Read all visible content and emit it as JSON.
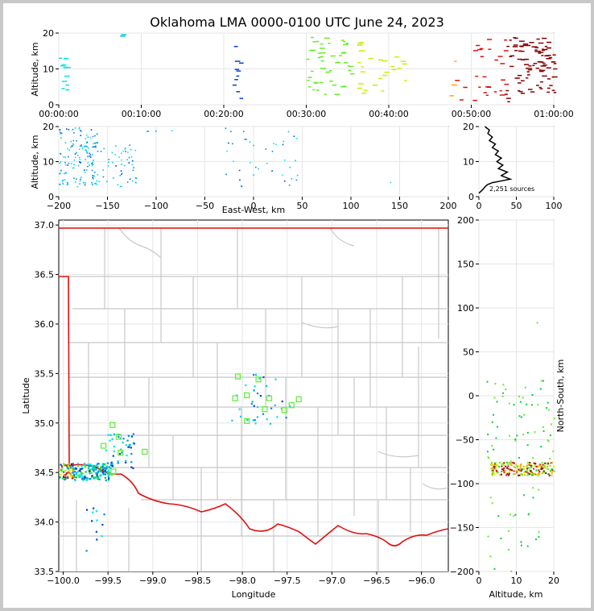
{
  "title": "Oklahoma LMA 0000-0100 UTC June 24, 2023",
  "colors": {
    "state_border": "#e01010",
    "county": "#c8c8c8",
    "station": "#66ee44",
    "source_old": "#00e5e5",
    "source_new": "#e01010"
  },
  "chart_data": [
    {
      "id": "time_height",
      "type": "scatter",
      "ylabel": "Altitude, km",
      "ylim": [
        0,
        20
      ],
      "y_ticks": [
        "0",
        "10",
        "20"
      ],
      "x_ticks": [
        "00:00:00",
        "00:10:00",
        "00:20:00",
        "00:30:00",
        "00:40:00",
        "00:50:00",
        "01:00:00"
      ],
      "xlim_minutes": [
        0,
        60
      ],
      "clusters": [
        {
          "t": [
            0,
            1
          ],
          "z": [
            3,
            14
          ],
          "n": 12
        },
        {
          "t": [
            7,
            8
          ],
          "z": [
            19,
            20
          ],
          "n": 2
        },
        {
          "t": [
            21,
            22
          ],
          "z": [
            1,
            18
          ],
          "n": 10
        },
        {
          "t": [
            30,
            37
          ],
          "z": [
            3,
            19
          ],
          "n": 60
        },
        {
          "t": [
            37,
            42
          ],
          "z": [
            3,
            14
          ],
          "n": 15
        },
        {
          "t": [
            47,
            55
          ],
          "z": [
            1,
            19
          ],
          "n": 40
        },
        {
          "t": [
            55,
            60
          ],
          "z": [
            3,
            19
          ],
          "n": 90
        }
      ]
    },
    {
      "id": "ew_height",
      "type": "scatter",
      "xlabel": "East-West, km",
      "ylabel": "Altitude, km",
      "xlim": [
        -200,
        200
      ],
      "ylim": [
        0,
        20
      ],
      "x_ticks": [
        "−200",
        "−150",
        "−100",
        "−50",
        "0",
        "50",
        "100",
        "150",
        "200"
      ],
      "y_ticks": [
        "0",
        "10",
        "20"
      ],
      "clusters": [
        {
          "x": [
            -200,
            -160
          ],
          "z": [
            3,
            20
          ],
          "n": 150
        },
        {
          "x": [
            -160,
            -120
          ],
          "z": [
            3,
            15
          ],
          "n": 50
        },
        {
          "x": [
            -110,
            -80
          ],
          "z": [
            18,
            20
          ],
          "n": 4
        },
        {
          "x": [
            -30,
            45
          ],
          "z": [
            3,
            20
          ],
          "n": 40
        },
        {
          "x": [
            140,
            145
          ],
          "z": [
            4,
            5
          ],
          "n": 1
        }
      ]
    },
    {
      "id": "height_hist",
      "type": "line",
      "xlim": [
        0,
        100
      ],
      "ylim": [
        0,
        20
      ],
      "x_ticks": [
        "0",
        "50",
        "100"
      ],
      "y_ticks": [
        "0",
        "10",
        "20"
      ],
      "annotation": "2,251 sources",
      "profile_x": [
        0,
        5,
        9,
        12,
        18,
        30,
        42,
        30,
        38,
        26,
        32,
        24,
        30,
        22,
        26,
        18,
        22,
        14,
        18,
        12,
        14,
        8
      ],
      "profile_y": [
        1,
        2,
        3,
        3.5,
        4,
        4.5,
        5,
        6,
        7,
        8,
        9,
        10,
        11,
        12,
        13,
        14,
        15,
        16,
        17,
        18,
        19,
        20
      ]
    },
    {
      "id": "plan_view",
      "type": "scatter",
      "xlabel": "Longitude",
      "ylabel": "Latitude",
      "xlim": [
        -100.05,
        -95.7
      ],
      "ylim": [
        33.5,
        37.05
      ],
      "x_ticks": [
        "−100.0",
        "−99.5",
        "−99.0",
        "−98.5",
        "−98.0",
        "−97.5",
        "−97.0",
        "−96.5",
        "−96.0"
      ],
      "y_ticks": [
        "33.5",
        "34.0",
        "34.5",
        "35.0",
        "35.5",
        "36.0",
        "36.5",
        "37.0"
      ],
      "stations": [
        {
          "lon": -98.05,
          "lat": 35.47
        },
        {
          "lon": -97.82,
          "lat": 35.44
        },
        {
          "lon": -97.95,
          "lat": 35.28
        },
        {
          "lon": -98.08,
          "lat": 35.25
        },
        {
          "lon": -97.7,
          "lat": 35.25
        },
        {
          "lon": -97.45,
          "lat": 35.18
        },
        {
          "lon": -97.37,
          "lat": 35.24
        },
        {
          "lon": -97.75,
          "lat": 35.14
        },
        {
          "lon": -97.53,
          "lat": 35.13
        },
        {
          "lon": -97.95,
          "lat": 35.02
        },
        {
          "lon": -99.45,
          "lat": 34.98
        },
        {
          "lon": -99.38,
          "lat": 34.86
        },
        {
          "lon": -99.55,
          "lat": 34.77
        },
        {
          "lon": -99.36,
          "lat": 34.7
        },
        {
          "lon": -99.09,
          "lat": 34.71
        },
        {
          "lon": -99.44,
          "lat": 34.51
        }
      ],
      "clusters": [
        {
          "lon": [
            -100.05,
            -99.45
          ],
          "lat": [
            34.43,
            34.6
          ],
          "n": 230
        },
        {
          "lon": [
            -99.55,
            -99.2
          ],
          "lat": [
            34.55,
            34.9
          ],
          "n": 40
        },
        {
          "lon": [
            -99.75,
            -99.55
          ],
          "lat": [
            33.7,
            34.2
          ],
          "n": 12
        },
        {
          "lon": [
            -98.15,
            -97.45
          ],
          "lat": [
            35.0,
            35.5
          ],
          "n": 35
        }
      ]
    },
    {
      "id": "ns_height",
      "type": "scatter",
      "xlabel": "Altitude, km",
      "ylabel": "North-South, km",
      "xlim": [
        0,
        20
      ],
      "ylim": [
        -200,
        200
      ],
      "x_ticks": [
        "0",
        "10",
        "20"
      ],
      "y_ticks": [
        "200",
        "150",
        "100",
        "50",
        "0",
        "−50",
        "−100",
        "−150",
        "−200"
      ],
      "clusters": [
        {
          "z": [
            3,
            20
          ],
          "y": [
            -90,
            -75
          ],
          "n": 220
        },
        {
          "z": [
            2,
            20
          ],
          "y": [
            -75,
            20
          ],
          "n": 60
        },
        {
          "z": [
            2,
            16
          ],
          "y": [
            -200,
            -100
          ],
          "n": 25
        },
        {
          "z": [
            14,
            16
          ],
          "y": [
            83,
            86
          ],
          "n": 1
        }
      ]
    }
  ]
}
